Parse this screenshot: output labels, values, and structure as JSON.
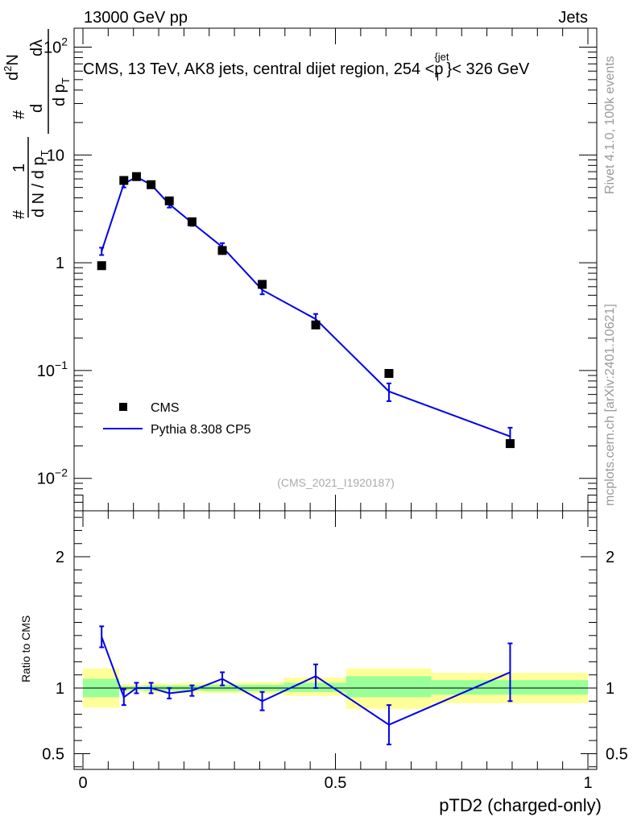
{
  "header": {
    "left": "13000 GeV pp",
    "right": "Jets"
  },
  "side": {
    "rivet": "Rivet 4.1.0,  100k events",
    "mcplots": "mcplots.cern.ch [arXiv:2401.10621]"
  },
  "chart_data": [
    {
      "type": "scatter",
      "panel": "main",
      "title": "CMS, 13 TeV, AK8 jets, central dijet region, 254 <p_T^{jet}< 326 GeV",
      "title_parts": {
        "main": "CMS, 13 TeV, AK8 jets, central dijet region, 254 <p",
        "sup": "{jet",
        "sub": "T",
        "end": "}< 326 GeV"
      },
      "ylabel_parts": {
        "hash": "#",
        "one": "1",
        "lower": "d N / d p",
        "lower_sub": "T",
        "upper": "d",
        "upper_sup": "2",
        "upper_N": "N",
        "frac2_num_hash": "#",
        "frac2_den": "d p",
        "frac2_den_sub": "T",
        "frac2_den_tail": "dλ"
      },
      "yscale": "log",
      "ylim": [
        0.005,
        150
      ],
      "xlim": [
        0,
        1
      ],
      "ytick_labels": [
        "10^-2",
        "10^-1",
        "1",
        "10",
        "10^2"
      ],
      "yticks": [
        {
          "value": 0.01,
          "base": "10",
          "exp": "−2"
        },
        {
          "value": 0.1,
          "base": "10",
          "exp": "−1"
        },
        {
          "value": 1,
          "base": "1",
          "exp": ""
        },
        {
          "value": 10,
          "base": "10",
          "exp": ""
        },
        {
          "value": 100,
          "base": "10",
          "exp": "2"
        }
      ],
      "watermark": "(CMS_2021_I1920187)",
      "legend": {
        "position": "bottom-left",
        "entries": [
          "CMS",
          "Pythia 8.308 CP5"
        ]
      },
      "series": [
        {
          "name": "CMS",
          "style": "markers",
          "color": "#000000",
          "x": [
            0.037,
            0.081,
            0.106,
            0.135,
            0.171,
            0.216,
            0.276,
            0.355,
            0.461,
            0.606,
            0.846
          ],
          "y": [
            0.94,
            5.8,
            6.3,
            5.3,
            3.75,
            2.4,
            1.3,
            0.63,
            0.265,
            0.094,
            0.021
          ]
        },
        {
          "name": "Pythia 8.308 CP5",
          "style": "line",
          "color": "#0000ee",
          "x": [
            0.037,
            0.081,
            0.106,
            0.135,
            0.171,
            0.216,
            0.276,
            0.355,
            0.461,
            0.606,
            0.846
          ],
          "y": [
            1.28,
            5.4,
            6.25,
            5.3,
            3.5,
            2.35,
            1.4,
            0.56,
            0.3,
            0.064,
            0.0245
          ],
          "err": [
            0.1,
            0.4,
            0.35,
            0.3,
            0.25,
            0.15,
            0.12,
            0.05,
            0.035,
            0.012,
            0.005
          ]
        }
      ]
    },
    {
      "type": "line",
      "panel": "ratio",
      "ylabel": "Ratio to CMS",
      "ylim": [
        0.38,
        2.35
      ],
      "xlim": [
        0,
        1
      ],
      "yticks": [
        0.5,
        1,
        2
      ],
      "ytick_labels": [
        "0.5",
        "1",
        "2"
      ],
      "xticks": [
        0,
        0.5,
        1
      ],
      "xtick_labels": [
        "0",
        "0.5",
        "1"
      ],
      "xlabel": "pTD2 (charged-only)",
      "bands": [
        {
          "x0": 0.0,
          "x1": 0.072,
          "inner": [
            0.93,
            1.07
          ],
          "outer": [
            0.85,
            1.15
          ]
        },
        {
          "x0": 0.072,
          "x1": 0.093,
          "inner": [
            0.985,
            1.015
          ],
          "outer": [
            0.97,
            1.03
          ]
        },
        {
          "x0": 0.093,
          "x1": 0.12,
          "inner": [
            0.985,
            1.015
          ],
          "outer": [
            0.97,
            1.03
          ]
        },
        {
          "x0": 0.12,
          "x1": 0.15,
          "inner": [
            0.98,
            1.02
          ],
          "outer": [
            0.96,
            1.04
          ]
        },
        {
          "x0": 0.15,
          "x1": 0.192,
          "inner": [
            0.98,
            1.02
          ],
          "outer": [
            0.965,
            1.035
          ]
        },
        {
          "x0": 0.192,
          "x1": 0.24,
          "inner": [
            0.98,
            1.02
          ],
          "outer": [
            0.96,
            1.04
          ]
        },
        {
          "x0": 0.24,
          "x1": 0.312,
          "inner": [
            0.975,
            1.025
          ],
          "outer": [
            0.96,
            1.04
          ]
        },
        {
          "x0": 0.312,
          "x1": 0.398,
          "inner": [
            0.975,
            1.025
          ],
          "outer": [
            0.955,
            1.045
          ]
        },
        {
          "x0": 0.398,
          "x1": 0.521,
          "inner": [
            0.97,
            1.04
          ],
          "outer": [
            0.94,
            1.08
          ]
        },
        {
          "x0": 0.521,
          "x1": 0.69,
          "inner": [
            0.93,
            1.09
          ],
          "outer": [
            0.84,
            1.15
          ]
        },
        {
          "x0": 0.69,
          "x1": 1.0,
          "inner": [
            0.95,
            1.06
          ],
          "outer": [
            0.885,
            1.115
          ]
        }
      ],
      "series": [
        {
          "name": "Pythia 8.308 CP5 / CMS",
          "color": "#0000ee",
          "x": [
            0.037,
            0.081,
            0.106,
            0.135,
            0.171,
            0.216,
            0.276,
            0.355,
            0.461,
            0.606,
            0.846
          ],
          "y": [
            1.39,
            0.93,
            1.0,
            1.0,
            0.96,
            0.98,
            1.07,
            0.9,
            1.09,
            0.72,
            1.12
          ],
          "err": [
            0.08,
            0.06,
            0.04,
            0.04,
            0.04,
            0.04,
            0.05,
            0.07,
            0.09,
            0.15,
            0.22
          ]
        }
      ],
      "band_colors": {
        "outer": "#ffff99",
        "inner": "#99ff99"
      }
    }
  ]
}
